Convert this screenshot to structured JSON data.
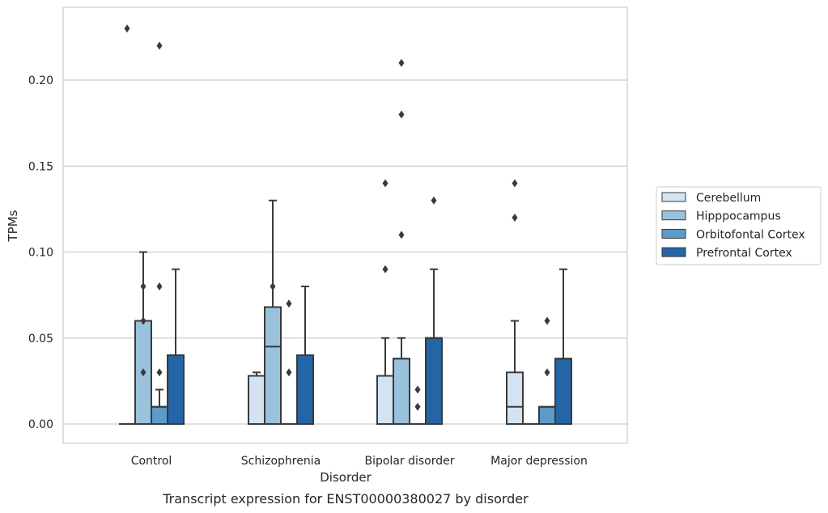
{
  "chart_data": {
    "type": "box",
    "caption": "Transcript expression for ENST00000380027 by disorder",
    "xlabel": "Disorder",
    "ylabel": "TPMs",
    "ylim": [
      -0.011,
      0.242
    ],
    "yticks": [
      "0.00",
      "0.05",
      "0.10",
      "0.15",
      "0.20"
    ],
    "grid": true,
    "legend_position": "right",
    "categories": [
      "Control",
      "Schizophrenia",
      "Bipolar disorder",
      "Major depression"
    ],
    "series": [
      {
        "name": "Cerebellum",
        "color": "#d3e3f1",
        "boxes": [
          {
            "q1": 0,
            "median": 0,
            "q3": 0,
            "whislo": 0,
            "whishi": 0,
            "fliers": []
          },
          {
            "q1": 0,
            "median": 0.028,
            "q3": 0.028,
            "whislo": 0,
            "whishi": 0.03,
            "fliers": []
          },
          {
            "q1": 0,
            "median": 0.028,
            "q3": 0.028,
            "whislo": 0,
            "whishi": 0.05,
            "fliers": [
              0.09,
              0.14
            ]
          },
          {
            "q1": 0,
            "median": 0.01,
            "q3": 0.03,
            "whislo": 0,
            "whishi": 0.06,
            "fliers": [
              0.12,
              0.14
            ]
          }
        ]
      },
      {
        "name": "Hipppocampus",
        "color": "#9ac2dc",
        "boxes": [
          {
            "q1": 0,
            "median": 0.06,
            "q3": 0.06,
            "whislo": 0,
            "whishi": 0.1,
            "fliers": [
              0.03,
              0.06,
              0.08
            ]
          },
          {
            "q1": 0,
            "median": 0.045,
            "q3": 0.068,
            "whislo": 0,
            "whishi": 0.13,
            "fliers": [
              0.08
            ]
          },
          {
            "q1": 0,
            "median": 0.038,
            "q3": 0.038,
            "whislo": 0,
            "whishi": 0.05,
            "fliers": [
              0.11,
              0.18,
              0.21
            ]
          },
          {
            "q1": 0,
            "median": 0,
            "q3": 0,
            "whislo": 0,
            "whishi": 0,
            "fliers": []
          }
        ]
      },
      {
        "name": "Orbitofontal Cortex",
        "color": "#5a9bc9",
        "boxes": [
          {
            "q1": 0,
            "median": 0.01,
            "q3": 0.01,
            "whislo": 0,
            "whishi": 0.02,
            "fliers": [
              0.03,
              0.08,
              0.22
            ]
          },
          {
            "q1": 0,
            "median": 0,
            "q3": 0,
            "whislo": 0,
            "whishi": 0,
            "fliers": [
              0.03,
              0.07
            ]
          },
          {
            "q1": 0,
            "median": 0,
            "q3": 0,
            "whislo": 0,
            "whishi": 0,
            "fliers": [
              0.01,
              0.02
            ]
          },
          {
            "q1": 0,
            "median": 0.01,
            "q3": 0.01,
            "whislo": 0,
            "whishi": 0.01,
            "fliers": [
              0.03,
              0.06
            ]
          }
        ]
      },
      {
        "name": "Prefrontal Cortex",
        "color": "#2465a5",
        "boxes": [
          {
            "q1": 0,
            "median": 0.04,
            "q3": 0.04,
            "whislo": 0,
            "whishi": 0.09,
            "fliers": []
          },
          {
            "q1": 0,
            "median": 0.04,
            "q3": 0.04,
            "whislo": 0,
            "whishi": 0.08,
            "fliers": []
          },
          {
            "q1": 0,
            "median": 0.05,
            "q3": 0.05,
            "whislo": 0,
            "whishi": 0.09,
            "fliers": [
              0.13
            ]
          },
          {
            "q1": 0,
            "median": 0.038,
            "q3": 0.038,
            "whislo": 0,
            "whishi": 0.09,
            "fliers": []
          }
        ]
      }
    ],
    "extra_fliers": [
      {
        "category": 0,
        "series": 0,
        "values": [
          0.23
        ]
      }
    ]
  }
}
